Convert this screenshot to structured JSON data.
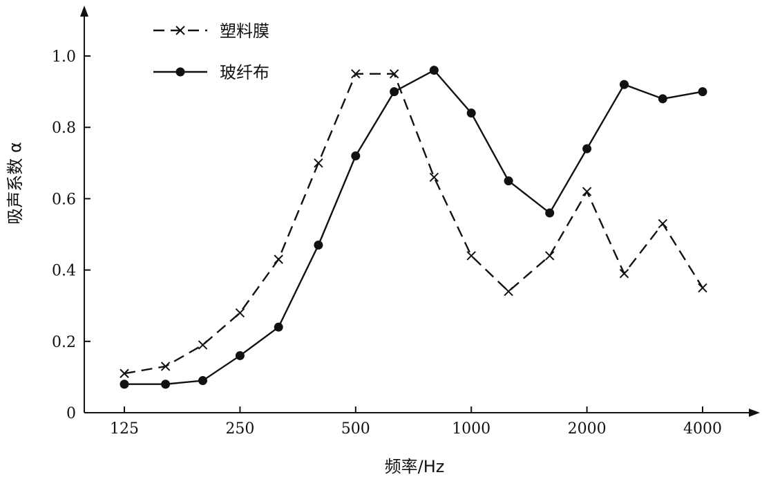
{
  "chart_data": {
    "type": "line",
    "xlabel": "频率/Hz",
    "ylabel": "吸声系数 α",
    "x_scale": "log",
    "x_ticks": [
      {
        "value": 125,
        "label": "125"
      },
      {
        "value": 250,
        "label": "250"
      },
      {
        "value": 500,
        "label": "500"
      },
      {
        "value": 1000,
        "label": "1000"
      },
      {
        "value": 2000,
        "label": "2000"
      },
      {
        "value": 4000,
        "label": "4000"
      }
    ],
    "y_ticks": [
      {
        "value": 0,
        "label": "0"
      },
      {
        "value": 0.2,
        "label": "0.2"
      },
      {
        "value": 0.4,
        "label": "0.4"
      },
      {
        "value": 0.6,
        "label": "0.6"
      },
      {
        "value": 0.8,
        "label": "0.8"
      },
      {
        "value": 1.0,
        "label": "1.0"
      }
    ],
    "xlim": [
      110,
      5500
    ],
    "ylim": [
      0,
      1.15
    ],
    "grid": false,
    "legend_position": "top-left",
    "series": [
      {
        "name": "塑料膜",
        "style": "dashed",
        "marker": "x",
        "color": "#111111",
        "x": [
          125,
          160,
          200,
          250,
          315,
          400,
          500,
          630,
          800,
          1000,
          1250,
          1600,
          2000,
          2500,
          3150,
          4000
        ],
        "y": [
          0.11,
          0.13,
          0.19,
          0.28,
          0.43,
          0.7,
          0.95,
          0.95,
          0.66,
          0.44,
          0.34,
          0.44,
          0.62,
          0.39,
          0.53,
          0.35
        ]
      },
      {
        "name": "玻纤布",
        "style": "solid",
        "marker": "circle",
        "color": "#111111",
        "x": [
          125,
          160,
          200,
          250,
          315,
          400,
          500,
          630,
          800,
          1000,
          1250,
          1600,
          2000,
          2500,
          3150,
          4000
        ],
        "y": [
          0.08,
          0.08,
          0.09,
          0.16,
          0.24,
          0.47,
          0.72,
          0.9,
          0.96,
          0.84,
          0.65,
          0.56,
          0.74,
          0.92,
          0.88,
          0.9
        ]
      }
    ]
  }
}
